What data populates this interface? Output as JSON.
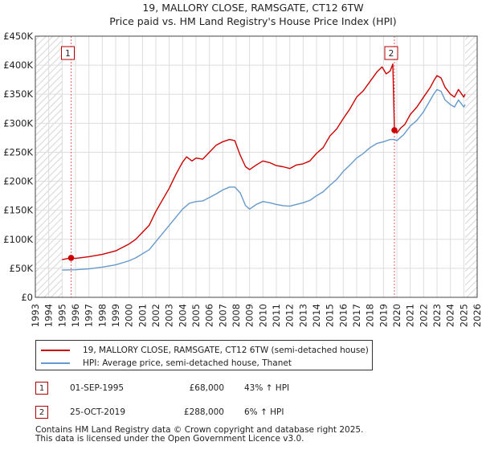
{
  "chart_data": {
    "type": "line",
    "title": "19, MALLORY CLOSE, RAMSGATE, CT12 6TW",
    "subtitle": "Price paid vs. HM Land Registry's House Price Index (HPI)",
    "xlim": [
      1993,
      2026
    ],
    "ylim": [
      0,
      450000
    ],
    "x_ticks": [
      1993,
      1994,
      1995,
      1996,
      1997,
      1998,
      1999,
      2000,
      2001,
      2002,
      2003,
      2004,
      2005,
      2006,
      2007,
      2008,
      2009,
      2010,
      2011,
      2012,
      2013,
      2014,
      2015,
      2016,
      2017,
      2018,
      2019,
      2020,
      2021,
      2022,
      2023,
      2024,
      2025,
      2026
    ],
    "y_ticks": [
      {
        "value": 0,
        "label": "£0"
      },
      {
        "value": 50000,
        "label": "£50K"
      },
      {
        "value": 100000,
        "label": "£100K"
      },
      {
        "value": 150000,
        "label": "£150K"
      },
      {
        "value": 200000,
        "label": "£200K"
      },
      {
        "value": 250000,
        "label": "£250K"
      },
      {
        "value": 300000,
        "label": "£300K"
      },
      {
        "value": 350000,
        "label": "£350K"
      },
      {
        "value": 400000,
        "label": "£400K"
      },
      {
        "value": 450000,
        "label": "£450K"
      }
    ],
    "data_start": 1995.0,
    "data_end": 2025.1,
    "series": [
      {
        "name": "19, MALLORY CLOSE, RAMSGATE, CT12 6TW (semi-detached house)",
        "color": "#cc0000",
        "points": [
          [
            1995.0,
            65000
          ],
          [
            1995.67,
            68000
          ],
          [
            1996.0,
            67000
          ],
          [
            1997.0,
            70000
          ],
          [
            1998.0,
            74000
          ],
          [
            1999.0,
            80000
          ],
          [
            2000.0,
            92000
          ],
          [
            2000.5,
            100000
          ],
          [
            2001.0,
            112000
          ],
          [
            2001.5,
            124000
          ],
          [
            2002.0,
            148000
          ],
          [
            2002.5,
            168000
          ],
          [
            2003.0,
            188000
          ],
          [
            2003.5,
            212000
          ],
          [
            2004.0,
            233000
          ],
          [
            2004.3,
            242000
          ],
          [
            2004.7,
            235000
          ],
          [
            2005.0,
            240000
          ],
          [
            2005.5,
            238000
          ],
          [
            2006.0,
            250000
          ],
          [
            2006.5,
            262000
          ],
          [
            2007.0,
            268000
          ],
          [
            2007.5,
            272000
          ],
          [
            2007.9,
            270000
          ],
          [
            2008.3,
            245000
          ],
          [
            2008.7,
            225000
          ],
          [
            2009.0,
            220000
          ],
          [
            2009.5,
            228000
          ],
          [
            2010.0,
            235000
          ],
          [
            2010.5,
            232000
          ],
          [
            2011.0,
            227000
          ],
          [
            2011.5,
            225000
          ],
          [
            2012.0,
            222000
          ],
          [
            2012.5,
            228000
          ],
          [
            2013.0,
            230000
          ],
          [
            2013.5,
            235000
          ],
          [
            2014.0,
            248000
          ],
          [
            2014.5,
            258000
          ],
          [
            2015.0,
            278000
          ],
          [
            2015.5,
            290000
          ],
          [
            2016.0,
            308000
          ],
          [
            2016.5,
            325000
          ],
          [
            2017.0,
            345000
          ],
          [
            2017.5,
            356000
          ],
          [
            2018.0,
            372000
          ],
          [
            2018.5,
            388000
          ],
          [
            2018.9,
            397000
          ],
          [
            2019.2,
            385000
          ],
          [
            2019.5,
            390000
          ],
          [
            2019.7,
            402000
          ],
          [
            2019.82,
            288000
          ],
          [
            2020.0,
            283000
          ],
          [
            2020.3,
            292000
          ],
          [
            2020.6,
            298000
          ],
          [
            2021.0,
            315000
          ],
          [
            2021.5,
            328000
          ],
          [
            2022.0,
            345000
          ],
          [
            2022.5,
            362000
          ],
          [
            2022.8,
            375000
          ],
          [
            2023.0,
            382000
          ],
          [
            2023.3,
            378000
          ],
          [
            2023.6,
            362000
          ],
          [
            2024.0,
            350000
          ],
          [
            2024.3,
            345000
          ],
          [
            2024.6,
            358000
          ],
          [
            2025.0,
            345000
          ],
          [
            2025.1,
            350000
          ]
        ]
      },
      {
        "name": "HPI: Average price, semi-detached house, Thanet",
        "color": "#6699cc",
        "points": [
          [
            1995.0,
            47000
          ],
          [
            1996.0,
            47500
          ],
          [
            1997.0,
            49000
          ],
          [
            1998.0,
            52000
          ],
          [
            1999.0,
            56000
          ],
          [
            2000.0,
            63000
          ],
          [
            2000.5,
            68000
          ],
          [
            2001.0,
            75000
          ],
          [
            2001.5,
            82000
          ],
          [
            2002.0,
            96000
          ],
          [
            2002.5,
            110000
          ],
          [
            2003.0,
            124000
          ],
          [
            2003.5,
            138000
          ],
          [
            2004.0,
            152000
          ],
          [
            2004.5,
            162000
          ],
          [
            2005.0,
            165000
          ],
          [
            2005.5,
            166000
          ],
          [
            2006.0,
            172000
          ],
          [
            2006.5,
            178000
          ],
          [
            2007.0,
            185000
          ],
          [
            2007.5,
            190000
          ],
          [
            2007.9,
            190000
          ],
          [
            2008.3,
            180000
          ],
          [
            2008.7,
            158000
          ],
          [
            2009.0,
            152000
          ],
          [
            2009.5,
            160000
          ],
          [
            2010.0,
            165000
          ],
          [
            2010.5,
            163000
          ],
          [
            2011.0,
            160000
          ],
          [
            2011.5,
            158000
          ],
          [
            2012.0,
            157000
          ],
          [
            2012.5,
            160000
          ],
          [
            2013.0,
            163000
          ],
          [
            2013.5,
            167000
          ],
          [
            2014.0,
            175000
          ],
          [
            2014.5,
            182000
          ],
          [
            2015.0,
            193000
          ],
          [
            2015.5,
            203000
          ],
          [
            2016.0,
            217000
          ],
          [
            2016.5,
            228000
          ],
          [
            2017.0,
            240000
          ],
          [
            2017.5,
            248000
          ],
          [
            2018.0,
            258000
          ],
          [
            2018.5,
            265000
          ],
          [
            2019.0,
            268000
          ],
          [
            2019.5,
            272000
          ],
          [
            2019.82,
            272000
          ],
          [
            2020.0,
            270000
          ],
          [
            2020.5,
            280000
          ],
          [
            2021.0,
            295000
          ],
          [
            2021.5,
            305000
          ],
          [
            2022.0,
            320000
          ],
          [
            2022.5,
            340000
          ],
          [
            2022.8,
            352000
          ],
          [
            2023.0,
            358000
          ],
          [
            2023.3,
            355000
          ],
          [
            2023.6,
            340000
          ],
          [
            2024.0,
            332000
          ],
          [
            2024.3,
            328000
          ],
          [
            2024.6,
            340000
          ],
          [
            2025.0,
            328000
          ],
          [
            2025.1,
            332000
          ]
        ]
      }
    ],
    "markers": [
      {
        "id": "1",
        "x": 1995.67,
        "y": 68000
      },
      {
        "id": "2",
        "x": 2019.82,
        "y": 288000
      }
    ]
  },
  "legend": {
    "items": [
      {
        "label": "19, MALLORY CLOSE, RAMSGATE, CT12 6TW (semi-detached house)",
        "color": "#cc0000"
      },
      {
        "label": "HPI: Average price, semi-detached house, Thanet",
        "color": "#6699cc"
      }
    ]
  },
  "transactions": [
    {
      "id": "1",
      "date": "01-SEP-1995",
      "price": "£68,000",
      "hpi": "43% ↑ HPI"
    },
    {
      "id": "2",
      "date": "25-OCT-2019",
      "price": "£288,000",
      "hpi": "6% ↑ HPI"
    }
  ],
  "footer": {
    "line1": "Contains HM Land Registry data © Crown copyright and database right 2025.",
    "line2": "This data is licensed under the Open Government Licence v3.0."
  }
}
